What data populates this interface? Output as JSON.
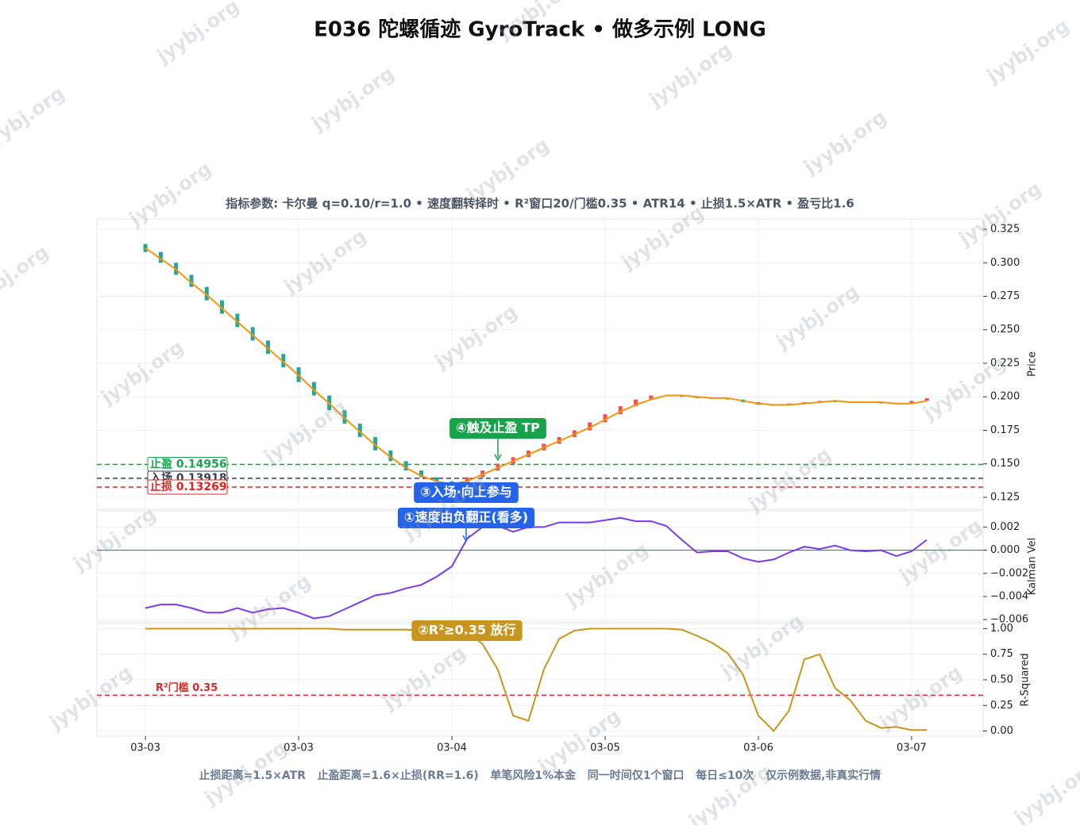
{
  "title": "E036 陀螺循迹 GyroTrack • 做多示例 LONG",
  "subtitle": "指标参数: 卡尔曼 q=0.10/r=1.0 • 速度翻转择时 • R²窗口20/门槛0.35 • ATR14 • 止损1.5×ATR • 盈亏比1.6",
  "footer": "止损距离=1.5×ATR   止盈距离=1.6×止损(RR=1.6)   单笔风险1%本金   同一时间仅1个窗口   每日≤10次   仅示例数据,非真实行情",
  "watermark": "jyybj.org",
  "chart_data": [
    {
      "type": "candlestick",
      "ylabel": "Price",
      "grid": true,
      "x": [
        0,
        3,
        6,
        9,
        12,
        15,
        18,
        21,
        24,
        27,
        30,
        33,
        36,
        39,
        42,
        45,
        48,
        51,
        54,
        57,
        60,
        63,
        66,
        69,
        72,
        75,
        78,
        81,
        84,
        87,
        90,
        93,
        96,
        99,
        102,
        105,
        108,
        111,
        114,
        117,
        120,
        123,
        126,
        129,
        132,
        135,
        138,
        141,
        144,
        147,
        150,
        153
      ],
      "open": [
        0.314,
        0.308,
        0.3,
        0.291,
        0.282,
        0.272,
        0.262,
        0.252,
        0.242,
        0.232,
        0.222,
        0.211,
        0.201,
        0.19,
        0.18,
        0.17,
        0.16,
        0.152,
        0.145,
        0.14,
        0.137,
        0.136,
        0.14,
        0.145,
        0.15,
        0.155,
        0.16,
        0.165,
        0.17,
        0.175,
        0.181,
        0.187,
        0.193,
        0.198,
        0.201,
        0.201,
        0.2,
        0.199,
        0.199,
        0.198,
        0.196,
        0.194,
        0.194,
        0.195,
        0.196,
        0.197,
        0.196,
        0.196,
        0.196,
        0.195,
        0.195,
        0.197
      ],
      "close": [
        0.308,
        0.3,
        0.291,
        0.282,
        0.272,
        0.262,
        0.252,
        0.242,
        0.232,
        0.222,
        0.211,
        0.201,
        0.19,
        0.18,
        0.17,
        0.16,
        0.152,
        0.145,
        0.14,
        0.137,
        0.136,
        0.14,
        0.145,
        0.15,
        0.155,
        0.16,
        0.165,
        0.17,
        0.175,
        0.181,
        0.187,
        0.193,
        0.198,
        0.201,
        0.201,
        0.2,
        0.199,
        0.199,
        0.198,
        0.196,
        0.194,
        0.194,
        0.195,
        0.196,
        0.197,
        0.196,
        0.196,
        0.196,
        0.195,
        0.195,
        0.197,
        0.199
      ],
      "up_color": "#ef5350",
      "down_color": "#26a69a",
      "line": {
        "color": "#f5940f",
        "values": [
          0.311,
          0.303,
          0.295,
          0.285,
          0.276,
          0.266,
          0.256,
          0.246,
          0.236,
          0.226,
          0.216,
          0.205,
          0.195,
          0.184,
          0.174,
          0.164,
          0.155,
          0.147,
          0.141,
          0.137,
          0.135,
          0.137,
          0.142,
          0.147,
          0.152,
          0.157,
          0.162,
          0.167,
          0.172,
          0.177,
          0.183,
          0.189,
          0.194,
          0.198,
          0.201,
          0.201,
          0.2,
          0.199,
          0.199,
          0.197,
          0.195,
          0.194,
          0.194,
          0.195,
          0.196,
          0.197,
          0.196,
          0.196,
          0.196,
          0.195,
          0.195,
          0.197
        ]
      },
      "hlines": [
        {
          "value": 0.14956,
          "label": "止盈 0.14956",
          "color": "#16a34a"
        },
        {
          "value": 0.13918,
          "label": "入场 0.13918",
          "color": "#374151"
        },
        {
          "value": 0.13269,
          "label": "止损 0.13269",
          "color": "#dc2626"
        }
      ],
      "annotations": [
        {
          "text": "④触及止盈 TP",
          "color": "#16a34a"
        },
        {
          "text": "③入场·向上参与",
          "color": "#2563eb"
        }
      ],
      "xlim": [
        -9.5,
        164
      ],
      "ylim": [
        0.1161,
        0.3327
      ],
      "yticks": [
        0.125,
        {
          "value": 0.15,
          "label": "0.150"
        },
        0.175,
        {
          "value": 0.2,
          "label": "0.200"
        },
        0.225,
        {
          "value": 0.25,
          "label": "0.250"
        },
        0.275,
        {
          "value": 0.3,
          "label": "0.300"
        },
        0.325
      ]
    },
    {
      "type": "line",
      "ylabel": "Kalman Vel",
      "grid": true,
      "zero_line": true,
      "x": [
        0,
        3,
        6,
        9,
        12,
        15,
        18,
        21,
        24,
        27,
        30,
        33,
        36,
        39,
        42,
        45,
        48,
        51,
        54,
        57,
        60,
        63,
        66,
        69,
        72,
        75,
        78,
        81,
        84,
        87,
        90,
        93,
        96,
        99,
        102,
        105,
        108,
        111,
        114,
        117,
        120,
        123,
        126,
        129,
        132,
        135,
        138,
        141,
        144,
        147,
        150,
        153
      ],
      "color": "#7c3aed",
      "values": [
        -0.005,
        -0.0047,
        -0.0047,
        -0.005,
        -0.0054,
        -0.0054,
        -0.005,
        -0.0054,
        -0.0051,
        -0.005,
        -0.0054,
        -0.0059,
        -0.0057,
        -0.0051,
        -0.0045,
        -0.0039,
        -0.0037,
        -0.0033,
        -0.003,
        -0.0023,
        -0.0014,
        0.001,
        0.002,
        0.0021,
        0.0016,
        0.002,
        0.002,
        0.0024,
        0.0024,
        0.0024,
        0.0026,
        0.0028,
        0.0025,
        0.0025,
        0.0021,
        0.0009,
        -0.0002,
        -0.0001,
        -0.0001,
        -0.0007,
        -0.001,
        -0.0008,
        -0.0002,
        0.0003,
        0.0001,
        0.0004,
        0.0,
        -0.0001,
        0.0,
        -0.0005,
        -0.0001,
        0.0009
      ],
      "annotations": [
        {
          "text": "①速度由负翻正(看多)",
          "color": "#2563eb"
        }
      ],
      "xlim": [
        -9.5,
        164
      ],
      "ylim": [
        -0.0062,
        0.0034
      ],
      "yticks": [
        {
          "value": -0.006,
          "label": "−0.006"
        },
        {
          "value": -0.004,
          "label": "−0.004"
        },
        {
          "value": -0.002,
          "label": "−0.002"
        },
        {
          "value": 0,
          "label": "0.000"
        },
        0.002
      ]
    },
    {
      "type": "line",
      "ylabel": "R-Squared",
      "grid": true,
      "x": [
        0,
        3,
        6,
        9,
        12,
        15,
        18,
        21,
        24,
        27,
        30,
        33,
        36,
        39,
        42,
        45,
        48,
        51,
        54,
        57,
        60,
        63,
        66,
        69,
        72,
        75,
        78,
        81,
        84,
        87,
        90,
        93,
        96,
        99,
        102,
        105,
        108,
        111,
        114,
        117,
        120,
        123,
        126,
        129,
        132,
        135,
        138,
        141,
        144,
        147,
        150,
        153
      ],
      "color": "#c8961e",
      "values": [
        1.0,
        1.0,
        1.0,
        1.0,
        1.0,
        1.0,
        1.0,
        1.0,
        1.0,
        1.0,
        1.0,
        1.0,
        1.0,
        0.99,
        0.99,
        0.99,
        0.99,
        0.99,
        0.98,
        0.98,
        0.98,
        0.97,
        0.85,
        0.6,
        0.15,
        0.1,
        0.6,
        0.9,
        0.98,
        1.0,
        1.0,
        1.0,
        1.0,
        1.0,
        1.0,
        0.99,
        0.93,
        0.86,
        0.76,
        0.55,
        0.15,
        0.0,
        0.2,
        0.7,
        0.75,
        0.42,
        0.3,
        0.1,
        0.03,
        0.04,
        0.01,
        0.01
      ],
      "hlines": [
        {
          "value": 0.35,
          "label": "R²门槛 0.35",
          "color": "#dc2626"
        }
      ],
      "annotations": [
        {
          "text": "②R²≥0.35 放行",
          "color": "#c8961e"
        }
      ],
      "xlim": [
        -9.5,
        164
      ],
      "ylim": [
        -0.05,
        1.05
      ],
      "yticks": [
        {
          "value": 0,
          "label": "0.00"
        },
        0.25,
        {
          "value": 0.5,
          "label": "0.50"
        },
        0.75,
        {
          "value": 1,
          "label": "1.00"
        }
      ],
      "xticks": [
        {
          "value": 0,
          "label": "03-03"
        },
        {
          "value": 30,
          "label": "03-03"
        },
        {
          "value": 60,
          "label": "03-04"
        },
        {
          "value": 90,
          "label": "03-05"
        },
        {
          "value": 120,
          "label": "03-06"
        },
        {
          "value": 150,
          "label": "03-07"
        }
      ]
    }
  ]
}
